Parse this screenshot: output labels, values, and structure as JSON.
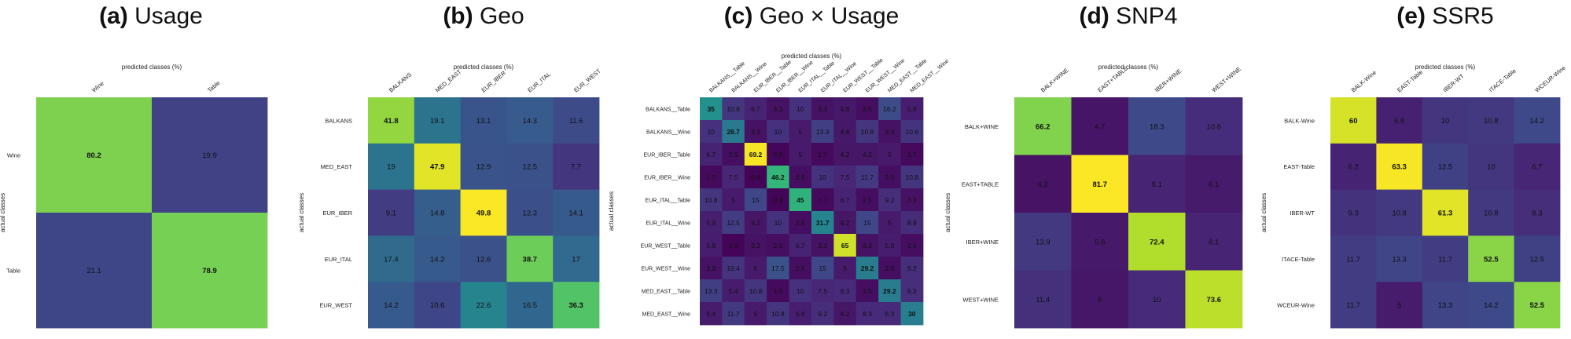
{
  "figure": {
    "panels": [
      {
        "letter": "(a)",
        "name": "Usage"
      },
      {
        "letter": "(b)",
        "name": "Geo"
      },
      {
        "letter": "(c)",
        "name": "Geo × Usage"
      },
      {
        "letter": "(d)",
        "name": "SNP4"
      },
      {
        "letter": "(e)",
        "name": "SSR5"
      }
    ]
  },
  "chart_data": [
    {
      "type": "heatmap",
      "title": "(a) Usage",
      "xlabel": "predicted classes (%)",
      "ylabel": "actual classes",
      "x_categories": [
        "Wine",
        "Table"
      ],
      "y_categories": [
        "Wine",
        "Table"
      ],
      "values": [
        [
          80.2,
          19.9
        ],
        [
          21.1,
          78.9
        ]
      ],
      "colormap": "viridis",
      "range": [
        0,
        100
      ]
    },
    {
      "type": "heatmap",
      "title": "(b) Geo",
      "xlabel": "predicted classes (%)",
      "ylabel": "actual classes",
      "x_categories": [
        "BALKANS",
        "MED_EAST",
        "EUR_IBER",
        "EUR_ITAL",
        "EUR_WEST"
      ],
      "y_categories": [
        "BALKANS",
        "MED_EAST",
        "EUR_IBER",
        "EUR_ITAL",
        "EUR_WEST"
      ],
      "values": [
        [
          41.8,
          19.1,
          13.1,
          14.3,
          11.6
        ],
        [
          19,
          47.9,
          12.9,
          12.5,
          7.7
        ],
        [
          9.1,
          14.8,
          49.8,
          12.3,
          14.1
        ],
        [
          17.4,
          14.2,
          12.6,
          38.7,
          17
        ],
        [
          14.2,
          10.6,
          22.6,
          16.5,
          36.3
        ]
      ],
      "colormap": "viridis",
      "range": [
        0,
        50
      ]
    },
    {
      "type": "heatmap",
      "title": "(c) Geo × Usage",
      "xlabel": "predicted classes (%)",
      "ylabel": "actual classes",
      "x_categories": [
        "BALKANS__Table",
        "BALKANS__Wine",
        "EUR_IBER__Table",
        "EUR_IBER__Wine",
        "EUR_ITAL__Table",
        "EUR_ITAL__Wine",
        "EUR_WEST__Table",
        "EUR_WEST__Wine",
        "MED_EAST__Table",
        "MED_EAST__Wine"
      ],
      "y_categories": [
        "BALKANS__Table",
        "BALKANS__Wine",
        "EUR_IBER__Table",
        "EUR_IBER__Wine",
        "EUR_ITAL__Table",
        "EUR_ITAL__Wine",
        "EUR_WEST__Table",
        "EUR_WEST__Wine",
        "MED_EAST__Table",
        "MED_EAST__Wine"
      ],
      "values": [
        [
          35,
          10.8,
          6.7,
          3.3,
          10,
          3.3,
          4.6,
          2.5,
          16.2,
          5.8
        ],
        [
          10,
          28.7,
          3.3,
          10,
          5,
          13.3,
          4.6,
          10.8,
          3.3,
          10.6
        ],
        [
          6.7,
          2.5,
          69.2,
          0.9,
          5,
          1.7,
          4.2,
          4.2,
          5,
          1.7
        ],
        [
          1.7,
          7.5,
          0.8,
          46.2,
          2.5,
          10,
          7.5,
          11.7,
          2.5,
          10.8
        ],
        [
          10.8,
          5,
          15,
          0.8,
          45,
          1.7,
          6.7,
          2.5,
          9.2,
          3.3
        ],
        [
          5.9,
          12.5,
          4.2,
          10,
          2.5,
          31.7,
          4.2,
          15,
          5,
          8.8
        ],
        [
          5.8,
          0.8,
          3.3,
          2.5,
          6.7,
          3.3,
          65,
          3.3,
          5.8,
          2.5
        ],
        [
          3.3,
          10.4,
          5,
          17.5,
          2.5,
          15,
          5,
          29.2,
          2.5,
          9.2
        ],
        [
          13.3,
          5.4,
          10.8,
          1.7,
          10,
          7.5,
          8.3,
          2.5,
          29.2,
          9.2
        ],
        [
          5.4,
          11.7,
          5,
          10.8,
          5.8,
          9.2,
          4.2,
          8.3,
          8.3,
          30
        ]
      ],
      "colormap": "viridis",
      "range": [
        0,
        70
      ]
    },
    {
      "type": "heatmap",
      "title": "(d) SNP4",
      "xlabel": "predicted classes (%)",
      "ylabel": "actual classes",
      "x_categories": [
        "BALK+WINE",
        "EAST+TABLE",
        "IBER+WINE",
        "WEST+WINE"
      ],
      "y_categories": [
        "BALK+WINE",
        "EAST+TABLE",
        "IBER+WINE",
        "WEST+WINE"
      ],
      "values": [
        [
          66.2,
          4.7,
          18.3,
          10.6
        ],
        [
          4.2,
          81.7,
          8.1,
          6.1
        ],
        [
          13.9,
          5.6,
          72.4,
          8.1
        ],
        [
          11.4,
          5,
          10,
          73.6
        ]
      ],
      "colormap": "viridis",
      "range": [
        0,
        82
      ]
    },
    {
      "type": "heatmap",
      "title": "(e) SSR5",
      "xlabel": "predicted classes (%)",
      "ylabel": "actual classes",
      "x_categories": [
        "BALK-Wine",
        "EAST-Table",
        "IBER-WT",
        "ITACE-Table",
        "WCEUR-Wine"
      ],
      "y_categories": [
        "BALK-Wine",
        "EAST-Table",
        "IBER-WT",
        "ITACE-Table",
        "WCEUR-Wine"
      ],
      "values": [
        [
          60,
          5.8,
          10,
          10.8,
          14.2
        ],
        [
          6.2,
          63.3,
          12.5,
          10,
          6.7
        ],
        [
          9.3,
          10.8,
          61.3,
          10.8,
          8.3
        ],
        [
          11.7,
          13.3,
          11.7,
          52.5,
          12.5
        ],
        [
          11.7,
          5,
          13.3,
          14.2,
          52.5
        ]
      ],
      "colormap": "viridis",
      "range": [
        0,
        64
      ]
    }
  ]
}
